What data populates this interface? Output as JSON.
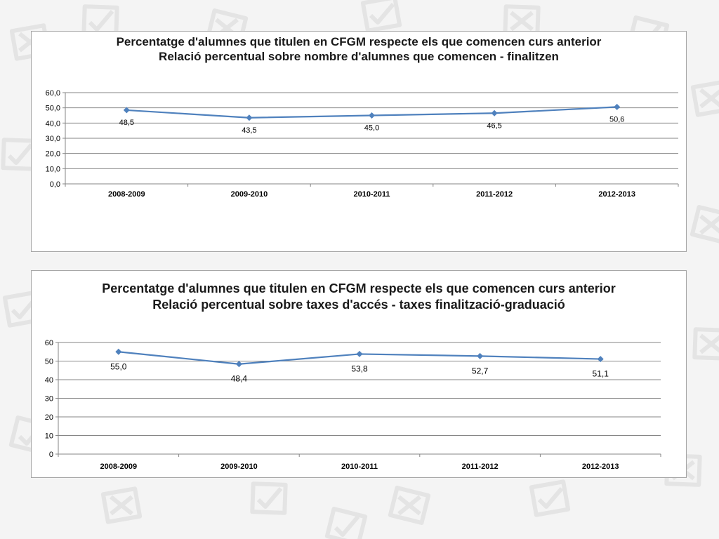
{
  "colors": {
    "series": "#4f81bd",
    "grid": "#868686",
    "background_pattern": "#e4e4e4"
  },
  "chart_data": [
    {
      "type": "line",
      "title_lines": [
        "Percentatge d'alumnes que titulen en CFGM respecte els que comencen curs anterior",
        "Relació percentual sobre nombre d'alumnes que comencen - finalitzen"
      ],
      "xlabel": "",
      "ylabel": "",
      "categories": [
        "2008-2009",
        "2009-2010",
        "2010-2011",
        "2011-2012",
        "2012-2013"
      ],
      "values": [
        48.5,
        43.5,
        45.0,
        46.5,
        50.6
      ],
      "data_labels": [
        "48,5",
        "43,5",
        "45,0",
        "46,5",
        "50,6"
      ],
      "y_ticks": [
        "0,0",
        "10,0",
        "20,0",
        "30,0",
        "40,0",
        "50,0",
        "60,0"
      ],
      "ylim": [
        0,
        60
      ],
      "grid": true,
      "legend": "none",
      "marker": "diamond"
    },
    {
      "type": "line",
      "title_lines": [
        "Percentatge d'alumnes que titulen en CFGM respecte els que comencen curs anterior",
        "Relació percentual sobre taxes d'accés - taxes finalització-graduació"
      ],
      "xlabel": "",
      "ylabel": "",
      "categories": [
        "2008-2009",
        "2009-2010",
        "2010-2011",
        "2011-2012",
        "2012-2013"
      ],
      "values": [
        55.0,
        48.4,
        53.8,
        52.7,
        51.1
      ],
      "data_labels": [
        "55,0",
        "48,4",
        "53,8",
        "52,7",
        "51,1"
      ],
      "y_ticks": [
        "0",
        "10",
        "20",
        "30",
        "40",
        "50",
        "60"
      ],
      "ylim": [
        0,
        60
      ],
      "grid": true,
      "legend": "none",
      "marker": "diamond"
    }
  ]
}
